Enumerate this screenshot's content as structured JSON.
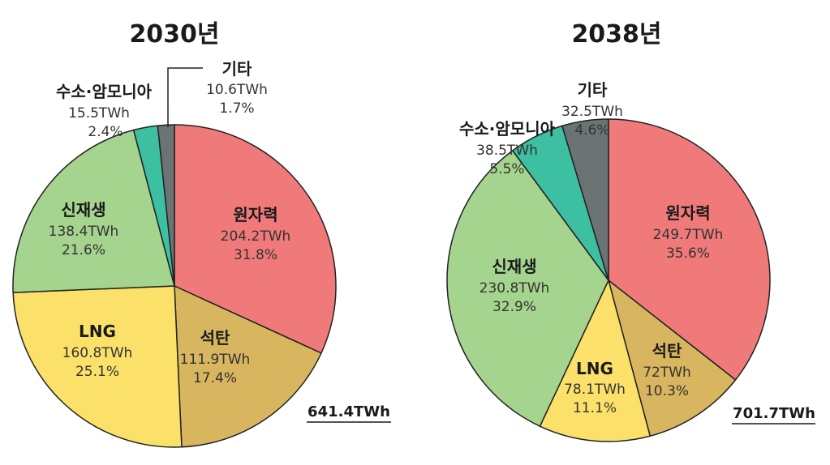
{
  "chart_data": [
    {
      "type": "pie",
      "title": "2030년",
      "total": "641.4TWh",
      "slices": [
        {
          "name": "원자력",
          "value": 204.2,
          "value_label": "204.2TWh",
          "percent_label": "31.8%",
          "color": "#F07A7A"
        },
        {
          "name": "석탄",
          "value": 111.9,
          "value_label": "111.9TWh",
          "percent_label": "17.4%",
          "color": "#D8B55F"
        },
        {
          "name": "LNG",
          "value": 160.8,
          "value_label": "160.8TWh",
          "percent_label": "25.1%",
          "color": "#FBE16A"
        },
        {
          "name": "신재생",
          "value": 138.4,
          "value_label": "138.4TWh",
          "percent_label": "21.6%",
          "color": "#A4D48E"
        },
        {
          "name": "수소·암모니아",
          "value": 15.5,
          "value_label": "15.5TWh",
          "percent_label": "2.4%",
          "color": "#3DBFA1"
        },
        {
          "name": "기타",
          "value": 10.6,
          "value_label": "10.6TWh",
          "percent_label": "1.7%",
          "color": "#6B7375"
        }
      ]
    },
    {
      "type": "pie",
      "title": "2038년",
      "total": "701.7TWh",
      "slices": [
        {
          "name": "원자력",
          "value": 249.7,
          "value_label": "249.7TWh",
          "percent_label": "35.6%",
          "color": "#F07A7A"
        },
        {
          "name": "석탄",
          "value": 72,
          "value_label": "72TWh",
          "percent_label": "10.3%",
          "color": "#D8B55F"
        },
        {
          "name": "LNG",
          "value": 78.1,
          "value_label": "78.1TWh",
          "percent_label": "11.1%",
          "color": "#FBE16A"
        },
        {
          "name": "신재생",
          "value": 230.8,
          "value_label": "230.8TWh",
          "percent_label": "32.9%",
          "color": "#A4D48E"
        },
        {
          "name": "수소·암모니아",
          "value": 38.5,
          "value_label": "38.5TWh",
          "percent_label": "5.5%",
          "color": "#3DBFA1"
        },
        {
          "name": "기타",
          "value": 32.5,
          "value_label": "32.5TWh",
          "percent_label": "4.6%",
          "color": "#6B7375"
        }
      ]
    }
  ]
}
